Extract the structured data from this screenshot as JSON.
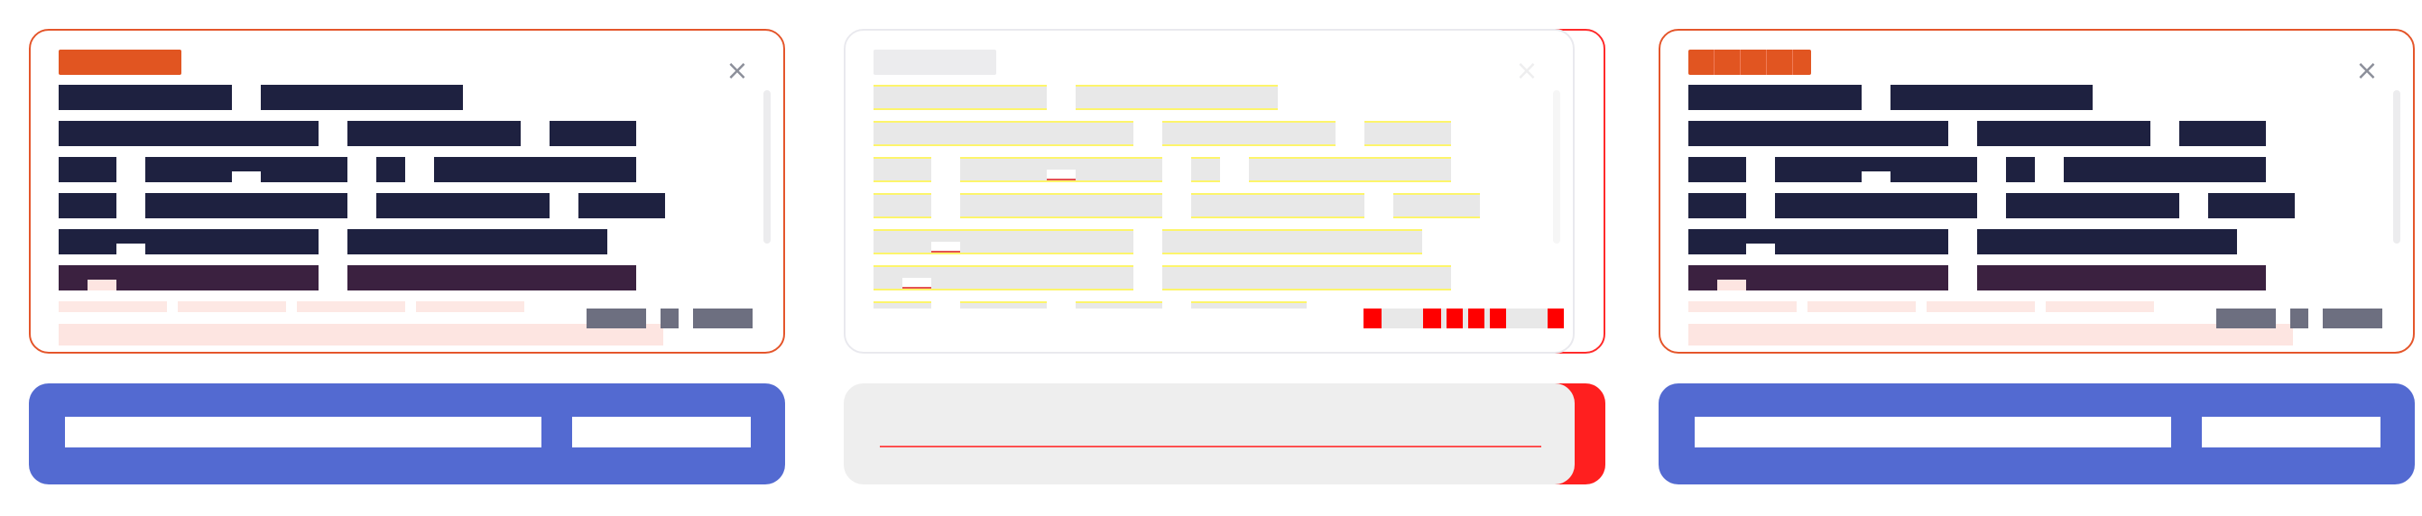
{
  "panels": [
    {
      "id": "panel-1",
      "state": "normal",
      "close_label": "×",
      "dialog": {
        "text_lines": 6,
        "footer_buttons": 3
      },
      "action": {
        "input_placeholder": "",
        "button_label": ""
      }
    },
    {
      "id": "panel-2",
      "state": "debug-overlay",
      "close_label": "×",
      "dialog": {
        "text_lines": 6,
        "footer_buttons": 3
      },
      "action": {
        "input_placeholder": "",
        "button_label": ""
      }
    },
    {
      "id": "panel-3",
      "state": "normal",
      "close_label": "×",
      "dialog": {
        "text_lines": 6,
        "footer_buttons": 3
      },
      "action": {
        "input_placeholder": "",
        "button_label": ""
      }
    }
  ],
  "colors": {
    "accent": "#e15521",
    "text_block": "#1e2140",
    "action_bar": "#536ad1",
    "overlay_red": "#ff0000",
    "overlay_yellow": "#fdf56a"
  }
}
